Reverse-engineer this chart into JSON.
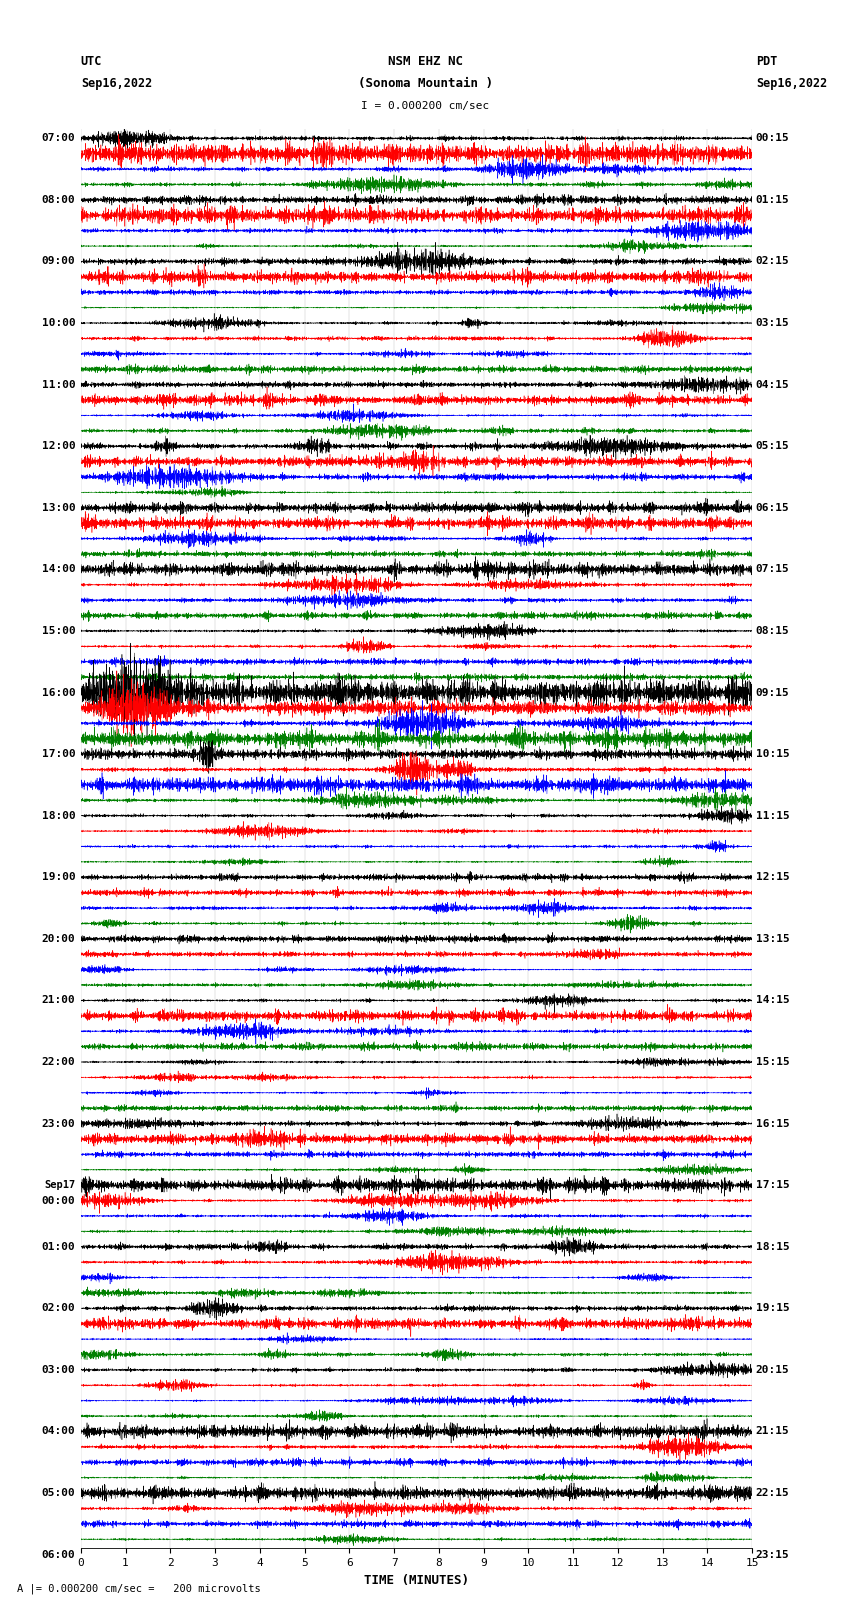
{
  "title_line1": "NSM EHZ NC",
  "title_line2": "(Sonoma Mountain )",
  "scale_label": "I = 0.000200 cm/sec",
  "left_header_line1": "UTC",
  "left_header_line2": "Sep16,2022",
  "right_header_line1": "PDT",
  "right_header_line2": "Sep16,2022",
  "footer_label": "A |= 0.000200 cm/sec =   200 microvolts",
  "xlabel": "TIME (MINUTES)",
  "left_times": [
    "07:00",
    "",
    "",
    "",
    "08:00",
    "",
    "",
    "",
    "09:00",
    "",
    "",
    "",
    "10:00",
    "",
    "",
    "",
    "11:00",
    "",
    "",
    "",
    "12:00",
    "",
    "",
    "",
    "13:00",
    "",
    "",
    "",
    "14:00",
    "",
    "",
    "",
    "15:00",
    "",
    "",
    "",
    "16:00",
    "",
    "",
    "",
    "17:00",
    "",
    "",
    "",
    "18:00",
    "",
    "",
    "",
    "19:00",
    "",
    "",
    "",
    "20:00",
    "",
    "",
    "",
    "21:00",
    "",
    "",
    "",
    "22:00",
    "",
    "",
    "",
    "23:00",
    "",
    "",
    "",
    "Sep17",
    "00:00",
    "",
    "",
    "01:00",
    "",
    "",
    "",
    "02:00",
    "",
    "",
    "",
    "03:00",
    "",
    "",
    "",
    "04:00",
    "",
    "",
    "",
    "05:00",
    "",
    "",
    "",
    "06:00",
    "",
    ""
  ],
  "right_times": [
    "00:15",
    "",
    "",
    "",
    "01:15",
    "",
    "",
    "",
    "02:15",
    "",
    "",
    "",
    "03:15",
    "",
    "",
    "",
    "04:15",
    "",
    "",
    "",
    "05:15",
    "",
    "",
    "",
    "06:15",
    "",
    "",
    "",
    "07:15",
    "",
    "",
    "",
    "08:15",
    "",
    "",
    "",
    "09:15",
    "",
    "",
    "",
    "10:15",
    "",
    "",
    "",
    "11:15",
    "",
    "",
    "",
    "12:15",
    "",
    "",
    "",
    "13:15",
    "",
    "",
    "",
    "14:15",
    "",
    "",
    "",
    "15:15",
    "",
    "",
    "",
    "16:15",
    "",
    "",
    "",
    "17:15",
    "",
    "",
    "",
    "18:15",
    "",
    "",
    "",
    "19:15",
    "",
    "",
    "",
    "20:15",
    "",
    "",
    "",
    "21:15",
    "",
    "",
    "",
    "22:15",
    "",
    "",
    "",
    "23:15",
    "",
    ""
  ],
  "colors": [
    "black",
    "red",
    "blue",
    "green"
  ],
  "total_rows": 92,
  "x_ticks": [
    0,
    1,
    2,
    3,
    4,
    5,
    6,
    7,
    8,
    9,
    10,
    11,
    12,
    13,
    14,
    15
  ],
  "xlim": [
    0,
    15
  ],
  "bg_color": "white",
  "font_size": 8,
  "lw": 0.35
}
